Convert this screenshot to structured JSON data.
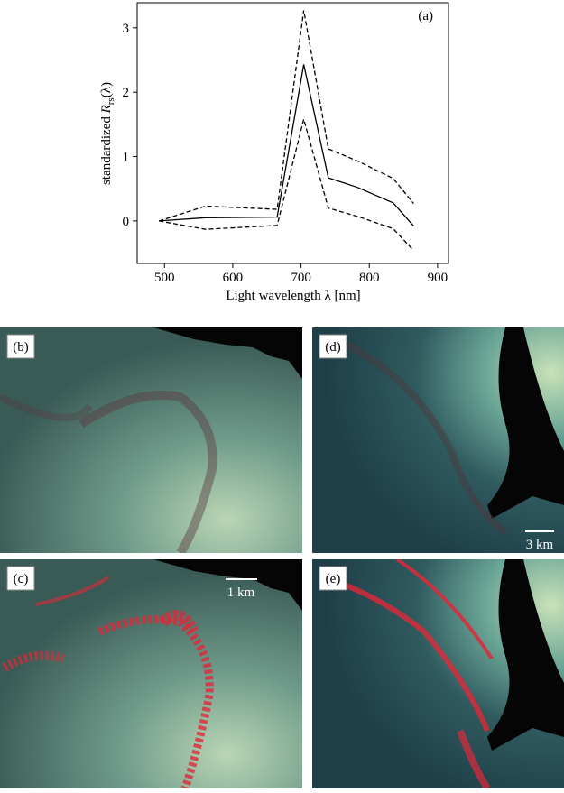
{
  "chart_data": {
    "type": "line",
    "panel_label": "(a)",
    "x_label": "Light wavelength  λ [nm]",
    "y_label": {
      "prefix": "standardized ",
      "symbol": "R",
      "subscript": "rs",
      "suffix": "(λ)"
    },
    "x": [
      492,
      560,
      665,
      704,
      740,
      783,
      835,
      865
    ],
    "series": [
      {
        "color": "#000000",
        "style": "solid",
        "values": [
          0,
          0.05,
          0.06,
          2.43,
          0.67,
          0.52,
          0.28,
          -0.08
        ]
      },
      {
        "color": "#000000",
        "style": "dashed",
        "values": [
          0,
          0.23,
          0.18,
          3.27,
          1.12,
          0.93,
          0.66,
          0.27
        ]
      },
      {
        "color": "#000000",
        "style": "dashed",
        "values": [
          0,
          -0.13,
          -0.07,
          1.58,
          0.2,
          0.07,
          -0.12,
          -0.46
        ]
      }
    ],
    "xlim": [
      460,
      916
    ],
    "ylim": [
      -0.66,
      3.39
    ],
    "xticks": [
      500,
      600,
      700,
      800,
      900
    ],
    "yticks": [
      0,
      1,
      2,
      3
    ]
  },
  "images": [
    {
      "label": "(b)"
    },
    {
      "label": "(d)"
    },
    {
      "label": "(c)",
      "scale_bar": "1 km"
    },
    {
      "label": "(e)"
    }
  ],
  "scale_bar_d": "3 km"
}
